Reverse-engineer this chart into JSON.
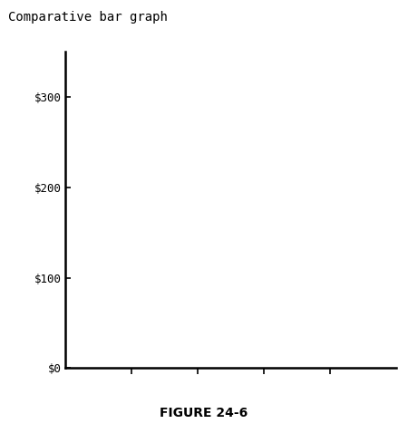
{
  "title": "Comparative bar graph",
  "figure_caption": "FIGURE 24-6",
  "yticks": [
    0,
    100,
    200,
    300
  ],
  "ytick_labels": [
    "$0",
    "$100",
    "$200",
    "$300"
  ],
  "ylim": [
    0,
    350
  ],
  "xlim": [
    0,
    5
  ],
  "xticks": [
    1,
    2,
    3,
    4
  ],
  "background_color": "#ffffff",
  "title_fontsize": 10,
  "caption_fontsize": 10,
  "ytick_fontsize": 9,
  "axis_linewidth": 1.8
}
